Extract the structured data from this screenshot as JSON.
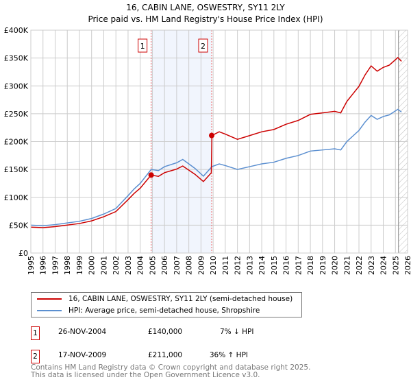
{
  "title": "16, CABIN LANE, OSWESTRY, SY11 2LY",
  "subtitle": "Price paid vs. HM Land Registry's House Price Index (HPI)",
  "chart_data": {
    "type": "line",
    "ylim": [
      0,
      400000
    ],
    "xlim": [
      1995,
      2026
    ],
    "yticks": [
      {
        "v": 0,
        "label": "£0"
      },
      {
        "v": 50000,
        "label": "£50K"
      },
      {
        "v": 100000,
        "label": "£100K"
      },
      {
        "v": 150000,
        "label": "£150K"
      },
      {
        "v": 200000,
        "label": "£200K"
      },
      {
        "v": 250000,
        "label": "£250K"
      },
      {
        "v": 300000,
        "label": "£300K"
      },
      {
        "v": 350000,
        "label": "£350K"
      },
      {
        "v": 400000,
        "label": "£400K"
      }
    ],
    "xticks": [
      "1995",
      "1996",
      "1997",
      "1998",
      "1999",
      "2000",
      "2001",
      "2002",
      "2003",
      "2004",
      "2005",
      "2006",
      "2007",
      "2008",
      "2009",
      "2010",
      "2011",
      "2012",
      "2013",
      "2014",
      "2015",
      "2016",
      "2017",
      "2018",
      "2019",
      "2020",
      "2021",
      "2022",
      "2023",
      "2024",
      "2025",
      "2026"
    ],
    "series": [
      {
        "name": "16, CABIN LANE, OSWESTRY, SY11 2LY (semi-detached house)",
        "color": "#cc0000",
        "x": [
          1995,
          1996,
          1997,
          1998,
          1999,
          2000,
          2001,
          2002,
          2003,
          2003.5,
          2004,
          2004.9,
          2005.5,
          2006,
          2007,
          2007.5,
          2008,
          2008.5,
          2009.2,
          2009.85,
          2009.9,
          2010.5,
          2011,
          2012,
          2013,
          2014,
          2015,
          2016,
          2017,
          2018,
          2019,
          2020,
          2020.5,
          2021,
          2021.5,
          2022,
          2022.5,
          2023,
          2023.5,
          2024,
          2024.5,
          2025.2,
          2025.5
        ],
        "y": [
          46500,
          45600,
          47400,
          50200,
          53000,
          57700,
          65100,
          74400,
          95800,
          107000,
          116300,
          140000,
          137600,
          144200,
          150700,
          156200,
          148800,
          141400,
          128300,
          144000,
          211000,
          217600,
          213500,
          204000,
          210800,
          217600,
          221700,
          231200,
          238000,
          248900,
          251600,
          254300,
          251600,
          272000,
          285600,
          299200,
          319600,
          335900,
          326400,
          333200,
          337300,
          350900,
          344100
        ]
      },
      {
        "name": "HPI: Average price, semi-detached house, Shropshire",
        "color": "#5b8fd0",
        "x": [
          1995,
          1996,
          1997,
          1998,
          1999,
          2000,
          2001,
          2002,
          2003,
          2003.5,
          2004,
          2004.9,
          2005.5,
          2006,
          2007,
          2007.5,
          2008,
          2008.5,
          2009.2,
          2009.9,
          2010.5,
          2011,
          2012,
          2013,
          2014,
          2015,
          2016,
          2017,
          2018,
          2019,
          2020,
          2020.5,
          2021,
          2021.5,
          2022,
          2022.5,
          2023,
          2023.5,
          2024,
          2024.5,
          2025.2,
          2025.5
        ],
        "y": [
          50000,
          49000,
          51000,
          54000,
          57000,
          62000,
          70000,
          80000,
          103000,
          115000,
          125000,
          150000,
          148000,
          155000,
          162000,
          168000,
          160000,
          152000,
          138000,
          155000,
          160000,
          157000,
          150000,
          155000,
          160000,
          163000,
          170000,
          175000,
          183000,
          185000,
          187000,
          185000,
          200000,
          210000,
          220000,
          235000,
          247000,
          240000,
          245000,
          248000,
          258000,
          253000
        ]
      }
    ],
    "sales": [
      {
        "label": "1",
        "x": 2004.9,
        "y": 140000
      },
      {
        "label": "2",
        "x": 2009.88,
        "y": 211000
      }
    ]
  },
  "legend": [
    "16, CABIN LANE, OSWESTRY, SY11 2LY (semi-detached house)",
    "HPI: Average price, semi-detached house, Shropshire"
  ],
  "transactions": [
    {
      "num": "1",
      "date": "26-NOV-2004",
      "price": "£140,000",
      "hpi": "7% ↓ HPI"
    },
    {
      "num": "2",
      "date": "17-NOV-2009",
      "price": "£211,000",
      "hpi": "36% ↑ HPI"
    }
  ],
  "footer": [
    "Contains HM Land Registry data © Crown copyright and database right 2025.",
    "This data is licensed under the Open Government Licence v3.0."
  ]
}
